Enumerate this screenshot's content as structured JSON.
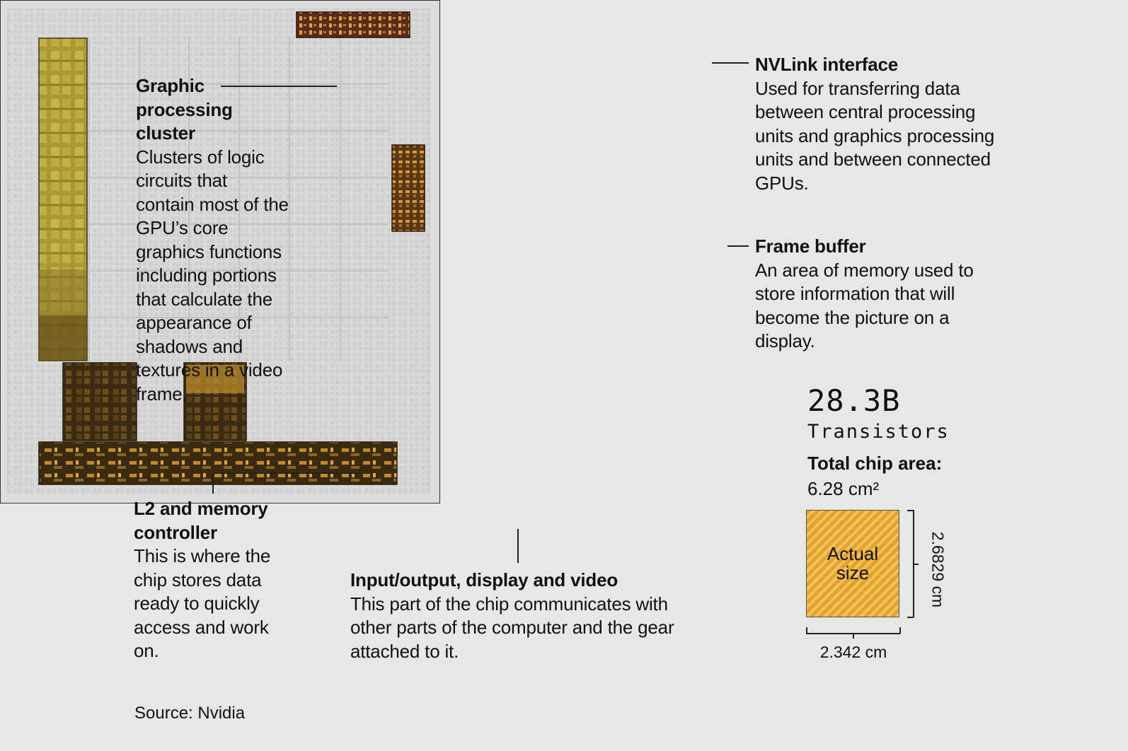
{
  "callouts": {
    "gpc": {
      "title": "Graphic processing cluster",
      "body": "Clusters of logic circuits that contain most of the GPU’s core graphics functions including portions that calculate the appearance of shadows and textures in a video frame."
    },
    "l2": {
      "title": "L2 and memory controller",
      "body": "This is where the chip stores data ready to quickly access and work on."
    },
    "io": {
      "title": "Input/output, display and video",
      "body": "This part of the chip communicates with other parts of the computer and the gear attached to it."
    },
    "nvlink": {
      "title": "NVLink interface",
      "body": "Used for transferring data between central processing units and graphics processing units and between connected GPUs."
    },
    "framebuffer": {
      "title": "Frame buffer",
      "body": "An area of memory used to store information that will become the picture on a display."
    }
  },
  "stats": {
    "transistors_value": "28.3B",
    "transistors_label": "Transistors",
    "area_label": "Total chip area:",
    "area_value": "6.28 cm²"
  },
  "actual_size": {
    "label": "Actual size",
    "height": "2.6829 cm",
    "width": "2.342 cm"
  },
  "source": "Source: Nvidia",
  "colors": {
    "gpc_highlight": "#b3a43a",
    "l2_highlight": "#3a2a12",
    "io_highlight": "#4a3410",
    "nvlink_highlight": "#6b3a1a",
    "framebuffer_highlight": "#7a4a12",
    "actual_size_fill": "#e8a93a"
  }
}
